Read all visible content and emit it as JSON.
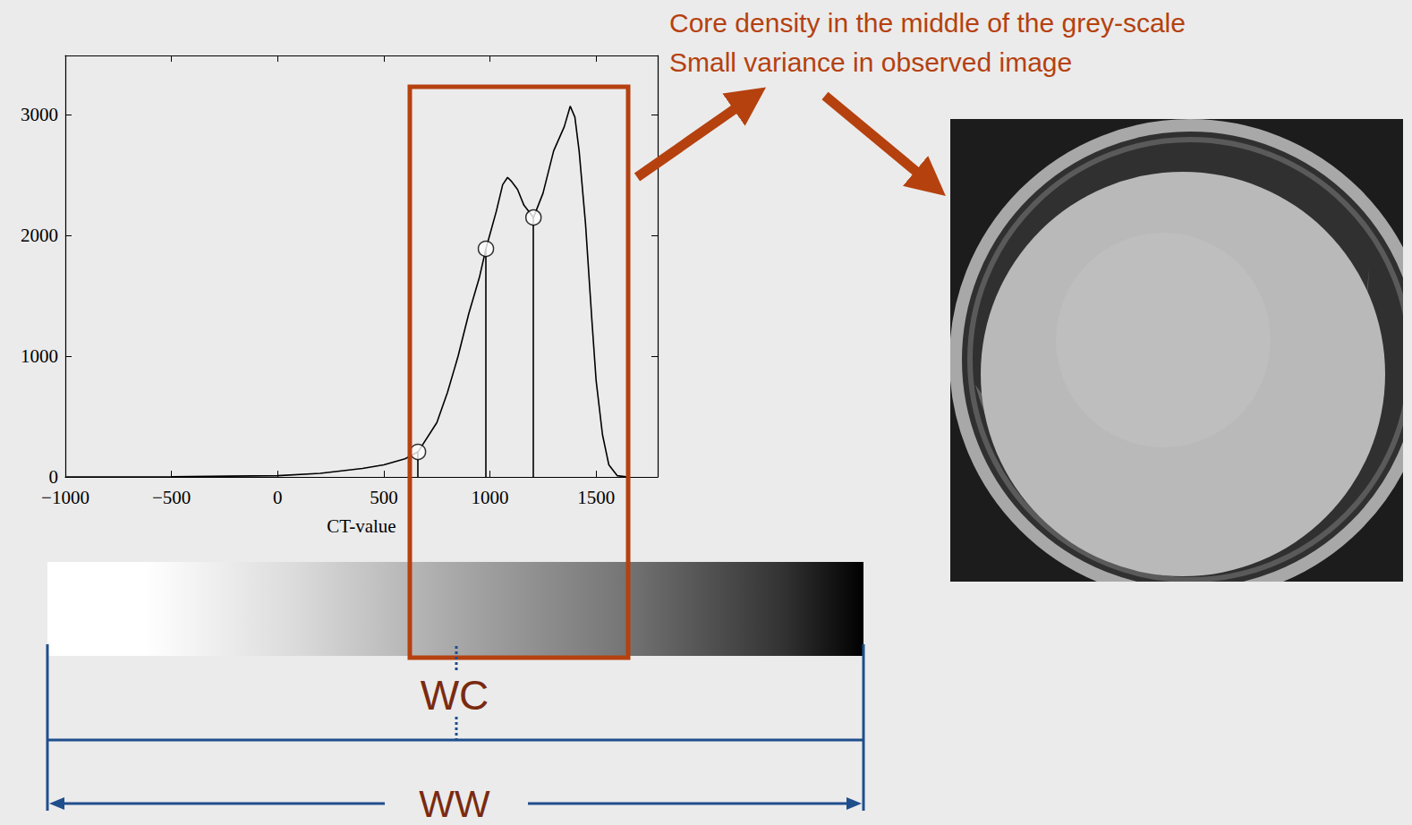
{
  "chart_data": {
    "type": "line",
    "x_label": "CT-value",
    "x": [
      -1000,
      -500,
      0,
      200,
      400,
      500,
      600,
      661,
      750,
      800,
      850,
      900,
      950,
      981,
      1030,
      1060,
      1083,
      1100,
      1130,
      1160,
      1205,
      1250,
      1300,
      1350,
      1378,
      1400,
      1420,
      1450,
      1480,
      1500,
      1530,
      1560,
      1600,
      1650
    ],
    "values": [
      0,
      2,
      10,
      30,
      70,
      100,
      150,
      207,
      450,
      700,
      1000,
      1350,
      1650,
      1889,
      2200,
      2420,
      2480,
      2450,
      2380,
      2250,
      2148,
      2350,
      2700,
      2900,
      3070,
      2980,
      2700,
      2100,
      1300,
      800,
      350,
      100,
      10,
      0
    ],
    "color": "#000000",
    "xlim": [
      -1000,
      1790
    ],
    "xticks": [
      {
        "value": -1000,
        "label": "−1000"
      },
      {
        "value": -500,
        "label": "−500"
      },
      0,
      500,
      1000,
      1500
    ],
    "ylim": [
      0,
      3490
    ],
    "yticks": [
      0,
      1000,
      2000,
      3000
    ],
    "grid": false,
    "markers": {
      "x": [
        661,
        981,
        1205
      ],
      "values": [
        207,
        1889,
        2148
      ]
    },
    "annotations": [
      "Core density in the middle of the grey-scale",
      "Small variance in observed image"
    ],
    "window_center_label": "WC",
    "window_width_label": "WW"
  }
}
